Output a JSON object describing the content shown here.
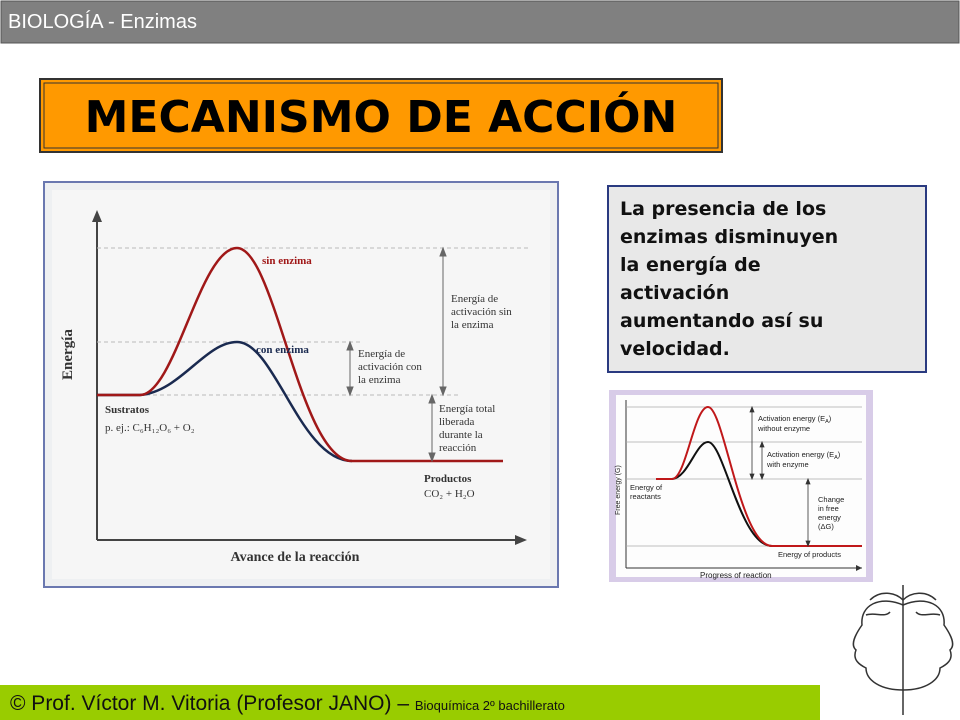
{
  "header": {
    "title": "BIOLOGÍA - Enzimas"
  },
  "slide": {
    "title": "MECANISMO DE ACCIÓN",
    "description": [
      "La presencia de los",
      "enzimas disminuyen",
      "la energía de",
      "activación",
      "aumentando así su",
      "velocidad."
    ]
  },
  "diagram_es": {
    "y_axis": "Energía",
    "x_axis": "Avance de la reacción",
    "curve_high": "sin enzima",
    "curve_low": "con enzima",
    "energy_without": [
      "Energía de",
      "activación sin",
      "la enzima"
    ],
    "energy_with": [
      "Energía de",
      "activación con",
      "la enzima"
    ],
    "energy_released": [
      "Energía total",
      "liberada",
      "durante la",
      "reacción"
    ],
    "substrates": "Sustratos",
    "substrates_example": "p. ej.: C₆H₁₂O₆ + O₂",
    "products": "Productos",
    "products_formula": "CO₂ + H₂O"
  },
  "diagram_en": {
    "y_axis": "Free energy (G)",
    "x_axis": "Progress of reaction",
    "activation_without": {
      "line1": [
        "Activation energy (E",
        "A",
        ")"
      ],
      "line2": "without enzyme"
    },
    "activation_with": {
      "line1": [
        "Activation energy (E",
        "A",
        ")"
      ],
      "line2": "with enzyme"
    },
    "reactants": [
      "Energy of",
      "reactants"
    ],
    "change": [
      "Change",
      "in free",
      "energy",
      "(ΔG)"
    ],
    "products": "Energy of products"
  },
  "footer": {
    "author": "© Prof. Víctor M. Vitoria (Profesor JANO) – ",
    "course": "Bioquímica 2º bachillerato"
  }
}
